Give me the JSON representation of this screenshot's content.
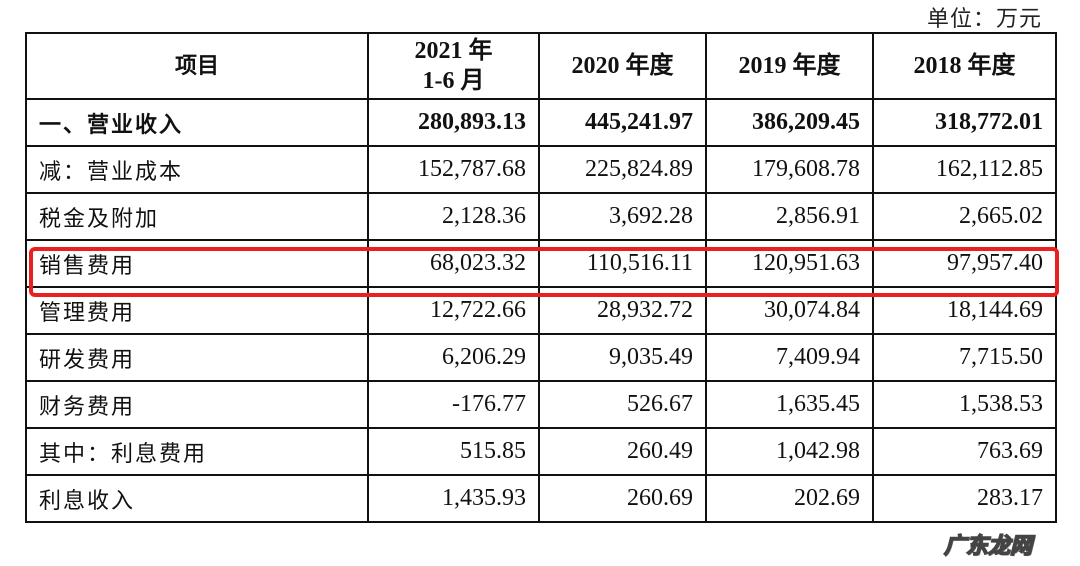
{
  "document": {
    "unit_label": "单位：万元",
    "highlight_color": "#e8201f",
    "highlighted_row_index": 3
  },
  "table": {
    "headers": [
      {
        "line1": "项目",
        "line2": ""
      },
      {
        "line1": "2021 年",
        "line2": "1-6 月"
      },
      {
        "line1": "2020 年度",
        "line2": ""
      },
      {
        "line1": "2019 年度",
        "line2": ""
      },
      {
        "line1": "2018 年度",
        "line2": ""
      }
    ],
    "rows": [
      {
        "label": "一、营业收入",
        "bold": true,
        "values": [
          "280,893.13",
          "445,241.97",
          "386,209.45",
          "318,772.01"
        ]
      },
      {
        "label": "减：营业成本",
        "bold": false,
        "values": [
          "152,787.68",
          "225,824.89",
          "179,608.78",
          "162,112.85"
        ]
      },
      {
        "label": "税金及附加",
        "bold": false,
        "values": [
          "2,128.36",
          "3,692.28",
          "2,856.91",
          "2,665.02"
        ]
      },
      {
        "label": "销售费用",
        "bold": false,
        "values": [
          "68,023.32",
          "110,516.11",
          "120,951.63",
          "97,957.40"
        ]
      },
      {
        "label": "管理费用",
        "bold": false,
        "values": [
          "12,722.66",
          "28,932.72",
          "30,074.84",
          "18,144.69"
        ]
      },
      {
        "label": "研发费用",
        "bold": false,
        "values": [
          "6,206.29",
          "9,035.49",
          "7,409.94",
          "7,715.50"
        ]
      },
      {
        "label": "财务费用",
        "bold": false,
        "values": [
          "-176.77",
          "526.67",
          "1,635.45",
          "1,538.53"
        ]
      },
      {
        "label": "其中：利息费用",
        "bold": false,
        "values": [
          "515.85",
          "260.49",
          "1,042.98",
          "763.69"
        ]
      },
      {
        "label": "利息收入",
        "bold": false,
        "values": [
          "1,435.93",
          "260.69",
          "202.69",
          "283.17"
        ]
      }
    ]
  },
  "watermark": {
    "text": "广东龙网"
  }
}
